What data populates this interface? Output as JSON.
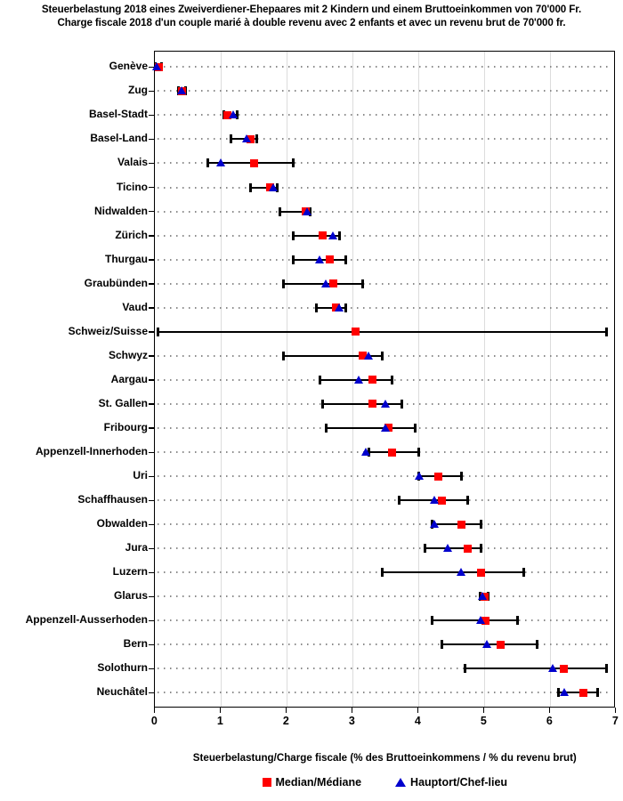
{
  "title": {
    "line1": "Steuerbelastung 2018 eines Zweiverdiener-Ehepaares mit 2 Kindern und einem Bruttoeinkommen von 70'000 Fr.",
    "line2": "Charge fiscale 2018 d'un couple marié à double revenu avec 2 enfants et avec un revenu brut de 70'000 fr."
  },
  "legend": {
    "median_label": "Median/Médiane",
    "hauptort_label": "Hauptort/Chef-lieu"
  },
  "colors": {
    "median": "#ff0000",
    "hauptort": "#0000cd",
    "grid": "#dcdcdc",
    "row_dots": "#8a8a8a",
    "frame": "#000000"
  },
  "chart_data": {
    "type": "scatter",
    "title": "Steuerbelastung 2018 eines Zweiverdiener-Ehepaares mit 2 Kindern und einem Bruttoeinkommen von 70'000 Fr. / Charge fiscale 2018 d'un couple marié à double revenu avec 2 enfants et avec un revenu brut de 70'000 fr.",
    "xlabel": "Steuerbelastung/Charge fiscale (% des Bruttoeinkommens / % du revenu brut)",
    "ylabel": "",
    "xlim": [
      0,
      7
    ],
    "xticks": [
      0,
      1,
      2,
      3,
      4,
      5,
      6,
      7
    ],
    "grid": "vertical-light-gray",
    "legend_position": "bottom",
    "series_meaning": {
      "min": "lowest municipality tax burden in canton (left whisker cap, %)",
      "max": "highest municipality tax burden in canton (right whisker cap, %)",
      "median": "Median/Médiane (red square, %)",
      "hauptort": "Hauptort/Chef-lieu cantonal capital (blue triangle, %); null = not shown"
    },
    "rows": [
      {
        "canton": "Genève",
        "min": 0.0,
        "hauptort": 0.03,
        "median": 0.05,
        "max": 0.1
      },
      {
        "canton": "Zug",
        "min": 0.35,
        "hauptort": 0.41,
        "median": 0.41,
        "max": 0.46
      },
      {
        "canton": "Basel-Stadt",
        "min": 1.05,
        "hauptort": 1.19,
        "median": 1.1,
        "max": 1.24
      },
      {
        "canton": "Basel-Land",
        "min": 1.15,
        "hauptort": 1.4,
        "median": 1.45,
        "max": 1.55
      },
      {
        "canton": "Valais",
        "min": 0.8,
        "hauptort": 1.0,
        "median": 1.5,
        "max": 2.1
      },
      {
        "canton": "Ticino",
        "min": 1.45,
        "hauptort": 1.8,
        "median": 1.75,
        "max": 1.85
      },
      {
        "canton": "Nidwalden",
        "min": 1.9,
        "hauptort": 2.32,
        "median": 2.29,
        "max": 2.36
      },
      {
        "canton": "Zürich",
        "min": 2.1,
        "hauptort": 2.7,
        "median": 2.55,
        "max": 2.8
      },
      {
        "canton": "Thurgau",
        "min": 2.1,
        "hauptort": 2.5,
        "median": 2.65,
        "max": 2.9
      },
      {
        "canton": "Graubünden",
        "min": 1.95,
        "hauptort": 2.6,
        "median": 2.7,
        "max": 3.15
      },
      {
        "canton": "Vaud",
        "min": 2.45,
        "hauptort": 2.8,
        "median": 2.75,
        "max": 2.9
      },
      {
        "canton": "Schweiz/Suisse",
        "min": 0.05,
        "hauptort": null,
        "median": 3.05,
        "max": 6.85
      },
      {
        "canton": "Schwyz",
        "min": 1.95,
        "hauptort": 3.25,
        "median": 3.15,
        "max": 3.45
      },
      {
        "canton": "Aargau",
        "min": 2.5,
        "hauptort": 3.1,
        "median": 3.3,
        "max": 3.6
      },
      {
        "canton": "St. Gallen",
        "min": 2.55,
        "hauptort": 3.5,
        "median": 3.3,
        "max": 3.75
      },
      {
        "canton": "Fribourg",
        "min": 2.6,
        "hauptort": 3.5,
        "median": 3.55,
        "max": 3.95
      },
      {
        "canton": "Appenzell-Innerhoden",
        "min": 3.25,
        "hauptort": 3.2,
        "median": 3.6,
        "max": 4.0
      },
      {
        "canton": "Uri",
        "min": 4.0,
        "hauptort": 4.02,
        "median": 4.3,
        "max": 4.65
      },
      {
        "canton": "Schaffhausen",
        "min": 3.7,
        "hauptort": 4.25,
        "median": 4.35,
        "max": 4.75
      },
      {
        "canton": "Obwalden",
        "min": 4.2,
        "hauptort": 4.25,
        "median": 4.65,
        "max": 4.95
      },
      {
        "canton": "Jura",
        "min": 4.1,
        "hauptort": 4.45,
        "median": 4.75,
        "max": 4.95
      },
      {
        "canton": "Luzern",
        "min": 3.45,
        "hauptort": 4.65,
        "median": 4.95,
        "max": 5.6
      },
      {
        "canton": "Glarus",
        "min": 4.93,
        "hauptort": 4.98,
        "median": 5.0,
        "max": 5.06
      },
      {
        "canton": "Appenzell-Ausserhoden",
        "min": 4.2,
        "hauptort": 4.95,
        "median": 5.02,
        "max": 5.5
      },
      {
        "canton": "Bern",
        "min": 4.35,
        "hauptort": 5.05,
        "median": 5.25,
        "max": 5.8
      },
      {
        "canton": "Solothurn",
        "min": 4.7,
        "hauptort": 6.05,
        "median": 6.2,
        "max": 6.85
      },
      {
        "canton": "Neuchâtel",
        "min": 6.12,
        "hauptort": 6.22,
        "median": 6.5,
        "max": 6.72
      }
    ]
  }
}
